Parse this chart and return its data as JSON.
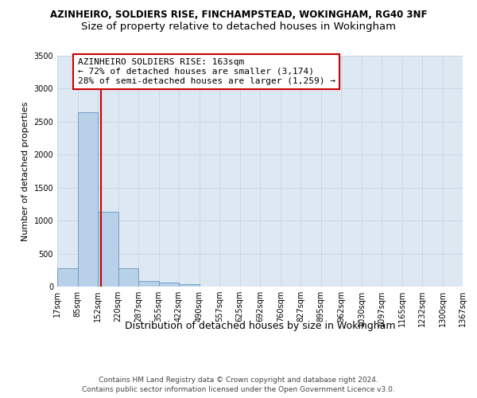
{
  "title": "AZINHEIRO, SOLDIERS RISE, FINCHAMPSTEAD, WOKINGHAM, RG40 3NF",
  "subtitle": "Size of property relative to detached houses in Wokingham",
  "xlabel": "Distribution of detached houses by size in Wokingham",
  "ylabel": "Number of detached properties",
  "bin_labels": [
    "17sqm",
    "85sqm",
    "152sqm",
    "220sqm",
    "287sqm",
    "355sqm",
    "422sqm",
    "490sqm",
    "557sqm",
    "625sqm",
    "692sqm",
    "760sqm",
    "827sqm",
    "895sqm",
    "962sqm",
    "1030sqm",
    "1097sqm",
    "1165sqm",
    "1232sqm",
    "1300sqm",
    "1367sqm"
  ],
  "bin_edges": [
    17,
    85,
    152,
    220,
    287,
    355,
    422,
    490,
    557,
    625,
    692,
    760,
    827,
    895,
    962,
    1030,
    1097,
    1165,
    1232,
    1300,
    1367
  ],
  "bar_heights": [
    280,
    2640,
    1130,
    280,
    85,
    55,
    40,
    5,
    5,
    3,
    2,
    2,
    1,
    1,
    0,
    0,
    0,
    0,
    0,
    0
  ],
  "bar_color": "#b8d0e8",
  "bar_edge_color": "#6899c0",
  "property_size": 163,
  "red_line_color": "#cc0000",
  "annotation_text": "AZINHEIRO SOLDIERS RISE: 163sqm\n← 72% of detached houses are smaller (3,174)\n28% of semi-detached houses are larger (1,259) →",
  "annotation_box_color": "#ffffff",
  "annotation_box_edge_color": "#cc0000",
  "ylim": [
    0,
    3500
  ],
  "yticks": [
    0,
    500,
    1000,
    1500,
    2000,
    2500,
    3000,
    3500
  ],
  "grid_color": "#c8d8e8",
  "background_color": "#dde8f3",
  "footer_line1": "Contains HM Land Registry data © Crown copyright and database right 2024.",
  "footer_line2": "Contains public sector information licensed under the Open Government Licence v3.0.",
  "title_fontsize": 8.5,
  "subtitle_fontsize": 9.5,
  "xlabel_fontsize": 9,
  "ylabel_fontsize": 8,
  "tick_fontsize": 7,
  "annotation_fontsize": 8,
  "footer_fontsize": 6.5
}
